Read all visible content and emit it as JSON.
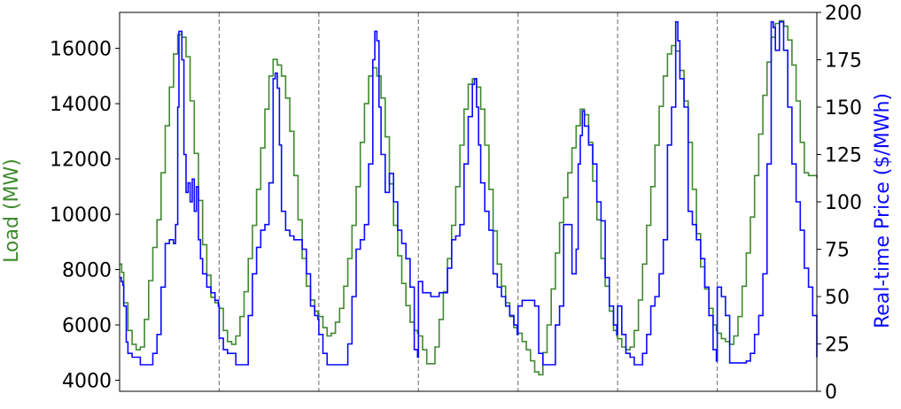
{
  "colors": {
    "load": "#3f8a2f",
    "price": "#0a0aff",
    "divider": "#808080",
    "axis": "#000000"
  },
  "chart_data": {
    "type": "line",
    "title": "",
    "xlabel": "",
    "ylabel_left": "Load (MW)",
    "ylabel_right": "Real-time Price ($/MWh)",
    "x_ticks": "none",
    "grid": false,
    "legend": "none",
    "x_range": [
      0,
      168
    ],
    "ylim_left": [
      3600,
      17300
    ],
    "ylim_right": [
      0,
      200
    ],
    "left_ticks": [
      {
        "value": 4000,
        "label": "4000"
      },
      {
        "value": 6000,
        "label": "6000"
      },
      {
        "value": 8000,
        "label": "8000"
      },
      {
        "value": 10000,
        "label": "10000"
      },
      {
        "value": 12000,
        "label": "12000"
      },
      {
        "value": 14000,
        "label": "14000"
      },
      {
        "value": 16000,
        "label": "16000"
      }
    ],
    "right_ticks": [
      {
        "value": 0,
        "label": "0"
      },
      {
        "value": 25,
        "label": "25"
      },
      {
        "value": 50,
        "label": "50"
      },
      {
        "value": 75,
        "label": "75"
      },
      {
        "value": 100,
        "label": "100"
      },
      {
        "value": 125,
        "label": "125"
      },
      {
        "value": 150,
        "label": "150"
      },
      {
        "value": 175,
        "label": "175"
      },
      {
        "value": 200,
        "label": "200"
      }
    ],
    "day_dividers": [
      24,
      48,
      72,
      96,
      120,
      144
    ],
    "series": [
      {
        "axis": "left",
        "x": [
          0,
          0.5,
          1,
          2,
          3,
          4,
          5,
          6,
          7,
          8,
          9,
          10,
          11,
          12,
          13,
          14,
          15,
          16,
          17,
          18,
          19,
          20,
          21,
          22,
          23,
          23.8,
          24,
          25,
          26,
          27,
          28,
          29,
          30,
          31,
          32,
          33,
          34,
          35,
          36,
          37,
          38,
          39,
          40,
          41,
          42,
          43,
          44,
          45,
          46,
          47,
          47.8,
          48,
          49,
          50,
          51,
          52,
          53,
          54,
          55,
          56,
          57,
          58,
          59,
          60,
          61,
          62,
          63,
          64,
          65,
          66,
          67,
          68,
          69,
          70,
          71,
          71.8,
          72,
          73,
          74,
          75,
          76,
          77,
          78,
          79,
          80,
          81,
          82,
          83,
          84,
          85,
          86,
          87,
          88,
          89,
          90,
          91,
          92,
          93,
          94,
          95,
          95.8,
          96,
          97,
          98,
          99,
          100,
          101,
          102,
          103,
          104,
          105,
          106,
          107,
          108,
          109,
          110,
          111,
          112,
          113,
          114,
          115,
          116,
          117,
          118,
          119,
          119.8,
          120,
          121,
          122,
          123,
          124,
          125,
          126,
          127,
          128,
          129,
          130,
          131,
          132,
          133,
          134,
          135,
          136,
          137,
          138,
          139,
          140,
          141,
          142,
          143,
          143.8,
          144,
          145,
          146,
          147,
          148,
          149,
          150,
          151,
          152,
          153,
          154,
          155,
          156,
          157,
          158,
          159,
          160,
          161,
          162,
          163,
          164,
          165,
          166,
          167,
          168
        ],
        "values": [
          8200,
          7900,
          6800,
          5800,
          5300,
          5100,
          5200,
          6200,
          7600,
          8800,
          9800,
          11500,
          13200,
          14600,
          15800,
          16500,
          16400,
          15700,
          14100,
          12200,
          10500,
          8900,
          7800,
          7000,
          6800,
          6700,
          6600,
          5800,
          5400,
          5300,
          5600,
          6300,
          7200,
          8400,
          9600,
          10900,
          12400,
          13800,
          15000,
          15600,
          15400,
          15000,
          14200,
          13000,
          11400,
          9800,
          8400,
          7400,
          6900,
          6500,
          6400,
          6300,
          5900,
          5600,
          5700,
          6100,
          6600,
          7400,
          8400,
          9600,
          11000,
          12600,
          14000,
          15000,
          15300,
          15000,
          14200,
          12800,
          11100,
          9600,
          8500,
          7500,
          6700,
          6100,
          5800,
          5700,
          5600,
          5100,
          4600,
          4600,
          5200,
          6200,
          7200,
          8400,
          9600,
          11000,
          12500,
          13800,
          14700,
          14900,
          14600,
          13800,
          12500,
          10900,
          9400,
          8200,
          7400,
          6800,
          6300,
          5900,
          5800,
          5700,
          5400,
          5100,
          4700,
          4300,
          4200,
          5000,
          6000,
          7300,
          8600,
          9700,
          10600,
          11500,
          12400,
          13200,
          13800,
          13600,
          12600,
          11200,
          9800,
          8400,
          7400,
          6500,
          5800,
          5600,
          5500,
          5200,
          5100,
          5200,
          5800,
          6900,
          8200,
          9600,
          11000,
          12500,
          13900,
          15000,
          15800,
          16100,
          15900,
          15200,
          14100,
          12600,
          10900,
          9300,
          8100,
          7300,
          6600,
          6000,
          5800,
          5700,
          5500,
          5400,
          5300,
          5600,
          6300,
          7400,
          8600,
          9900,
          11400,
          12900,
          14300,
          15500,
          16400,
          16900,
          17000,
          16800,
          16300,
          15400,
          14100,
          12600,
          11500,
          11400,
          11400,
          11300
        ]
      },
      {
        "axis": "right",
        "x": [
          0,
          0.4,
          0.8,
          1,
          1.6,
          2,
          3,
          4,
          5,
          6,
          7,
          8,
          9,
          10,
          11,
          12,
          13,
          13.5,
          14,
          14.3,
          14.7,
          15,
          15.5,
          16,
          16.5,
          17,
          17.5,
          18,
          18.5,
          19,
          19.5,
          20,
          21,
          22,
          23,
          23.8,
          24,
          25,
          26,
          27,
          28,
          29,
          30,
          31,
          32,
          33,
          34,
          35,
          36,
          37,
          37.5,
          38,
          38.5,
          39,
          40,
          41,
          42,
          43,
          44,
          45,
          46,
          47,
          47.8,
          48,
          49,
          50,
          51,
          52,
          53,
          54,
          55,
          56,
          57,
          58,
          59,
          60,
          61,
          61.5,
          62,
          62.5,
          63,
          64,
          65,
          66,
          67,
          68,
          69,
          70,
          71,
          71.8,
          72,
          73,
          74,
          75,
          76,
          77,
          78,
          79,
          80,
          81,
          82,
          83,
          84,
          85,
          85.5,
          86,
          86.5,
          87,
          88,
          89,
          90,
          91,
          92,
          93,
          94,
          95,
          95.8,
          96,
          97,
          98,
          99,
          100,
          101,
          102,
          103,
          104,
          105,
          106,
          107,
          108,
          109,
          110,
          110.5,
          111,
          111.5,
          112,
          113,
          114,
          115,
          116,
          117,
          118,
          119,
          119.8,
          120,
          121,
          122,
          123,
          124,
          125,
          126,
          127,
          128,
          129,
          130,
          131,
          132,
          133,
          134,
          134.5,
          135,
          136,
          137,
          138,
          139,
          140,
          141,
          142,
          143,
          143.8,
          144,
          145,
          146,
          147,
          148,
          149,
          150,
          151,
          152,
          153,
          154,
          155,
          156,
          157,
          157.5,
          158,
          159,
          160,
          161,
          162,
          163,
          164,
          165,
          166,
          167,
          168
        ],
        "values": [
          60,
          58,
          56,
          45,
          26,
          20,
          18,
          18,
          14,
          14,
          14,
          20,
          30,
          55,
          78,
          80,
          78,
          88,
          150,
          190,
          190,
          175,
          125,
          105,
          110,
          100,
          112,
          95,
          108,
          80,
          70,
          62,
          55,
          52,
          48,
          45,
          28,
          22,
          20,
          20,
          14,
          14,
          14,
          40,
          62,
          76,
          85,
          88,
          110,
          165,
          168,
          160,
          130,
          95,
          85,
          82,
          80,
          80,
          75,
          62,
          45,
          40,
          38,
          30,
          20,
          14,
          14,
          14,
          14,
          14,
          25,
          50,
          75,
          80,
          88,
          120,
          175,
          190,
          185,
          150,
          125,
          105,
          115,
          100,
          85,
          78,
          70,
          55,
          22,
          18,
          58,
          52,
          52,
          50,
          50,
          52,
          52,
          65,
          80,
          82,
          88,
          120,
          145,
          162,
          165,
          150,
          130,
          110,
          95,
          85,
          62,
          55,
          50,
          45,
          40,
          35,
          30,
          45,
          48,
          48,
          48,
          45,
          20,
          14,
          14,
          14,
          35,
          45,
          88,
          88,
          62,
          75,
          120,
          135,
          148,
          140,
          130,
          120,
          100,
          90,
          60,
          45,
          35,
          30,
          45,
          30,
          20,
          18,
          14,
          14,
          20,
          30,
          45,
          50,
          62,
          80,
          130,
          150,
          195,
          185,
          165,
          150,
          95,
          88,
          80,
          70,
          55,
          40,
          22,
          16,
          55,
          50,
          40,
          15,
          15,
          15,
          15,
          16,
          20,
          30,
          40,
          62,
          120,
          195,
          192,
          180,
          195,
          180,
          150,
          120,
          100,
          85,
          65,
          55,
          40,
          18
        ]
      }
    ]
  }
}
